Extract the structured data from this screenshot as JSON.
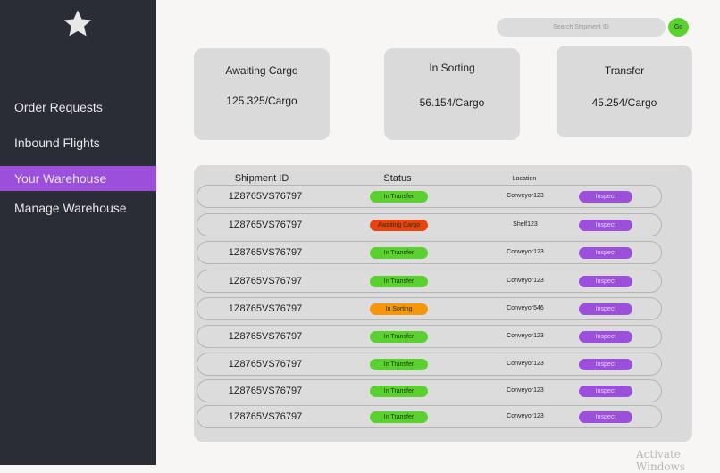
{
  "sidebar": {
    "logo_icon": "star-icon",
    "items": [
      {
        "label": "Order Requests",
        "active": false
      },
      {
        "label": "Inbound Flights",
        "active": false
      },
      {
        "label": "Your Warehouse",
        "active": true
      },
      {
        "label": "Manage Warehouse",
        "active": false
      }
    ]
  },
  "search": {
    "placeholder": "Search Shipment ID",
    "go_label": "Go"
  },
  "cards": [
    {
      "title": "Awaiting Cargo",
      "value": "125.325/Cargo"
    },
    {
      "title": "In Sorting",
      "value": "56.154/Cargo"
    },
    {
      "title": "Transfer",
      "value": "45.254/Cargo"
    }
  ],
  "table": {
    "headers": {
      "id": "Shipment ID",
      "status": "Status",
      "location": "Location"
    },
    "action_label": "Inspect",
    "rows": [
      {
        "id": "1Z8765VS76797",
        "status": "In Transfer",
        "location": "Conveyor123"
      },
      {
        "id": "1Z8765VS76797",
        "status": "Awaiting Cargo",
        "location": "Shelf123"
      },
      {
        "id": "1Z8765VS76797",
        "status": "In Transfer",
        "location": "Conveyor123"
      },
      {
        "id": "1Z8765VS76797",
        "status": "In Transfer",
        "location": "Conveyor123"
      },
      {
        "id": "1Z8765VS76797",
        "status": "In Sorting",
        "location": "Conveyor546"
      },
      {
        "id": "1Z8765VS76797",
        "status": "In Transfer",
        "location": "Conveyor123"
      },
      {
        "id": "1Z8765VS76797",
        "status": "In Transfer",
        "location": "Conveyor123"
      },
      {
        "id": "1Z8765VS76797",
        "status": "In Transfer",
        "location": "Conveyor123"
      },
      {
        "id": "1Z8765VS76797",
        "status": "In Transfer",
        "location": "Conveyor123"
      }
    ]
  },
  "status_colors": {
    "In Transfer": "#5bd130",
    "Awaiting Cargo": "#e8420f",
    "In Sorting": "#f6960a"
  },
  "accent": "#9b4fdb",
  "watermark": "Activate Windows"
}
